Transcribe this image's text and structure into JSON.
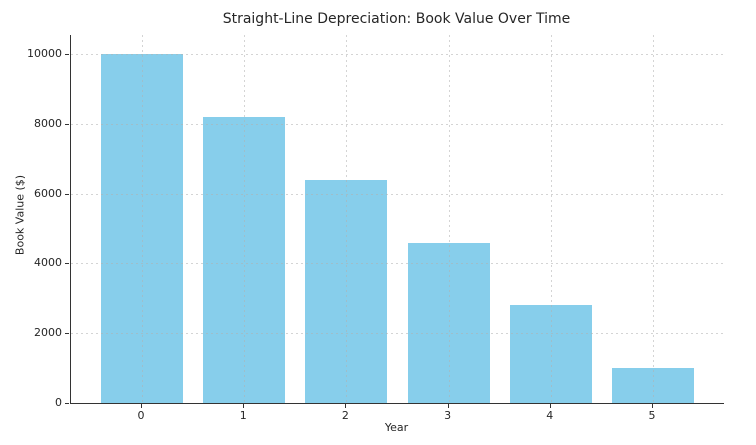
{
  "chart_data": {
    "type": "bar",
    "title": "Straight-Line Depreciation: Book Value Over Time",
    "xlabel": "Year",
    "ylabel": "Book Value ($)",
    "categories": [
      "0",
      "1",
      "2",
      "3",
      "4",
      "5"
    ],
    "values": [
      10000,
      8200,
      6400,
      4600,
      2800,
      1000
    ],
    "yticks": [
      0,
      2000,
      4000,
      6000,
      8000,
      10000
    ],
    "ylim": [
      0,
      10544
    ],
    "grid": "both, dashed, drawn above bars",
    "legend": "none",
    "colors": {
      "bar_fill": "#87CEEB",
      "grid_line": "#b0b0b0",
      "spine": "#333333",
      "text": "#262626",
      "background": "#ffffff"
    }
  }
}
